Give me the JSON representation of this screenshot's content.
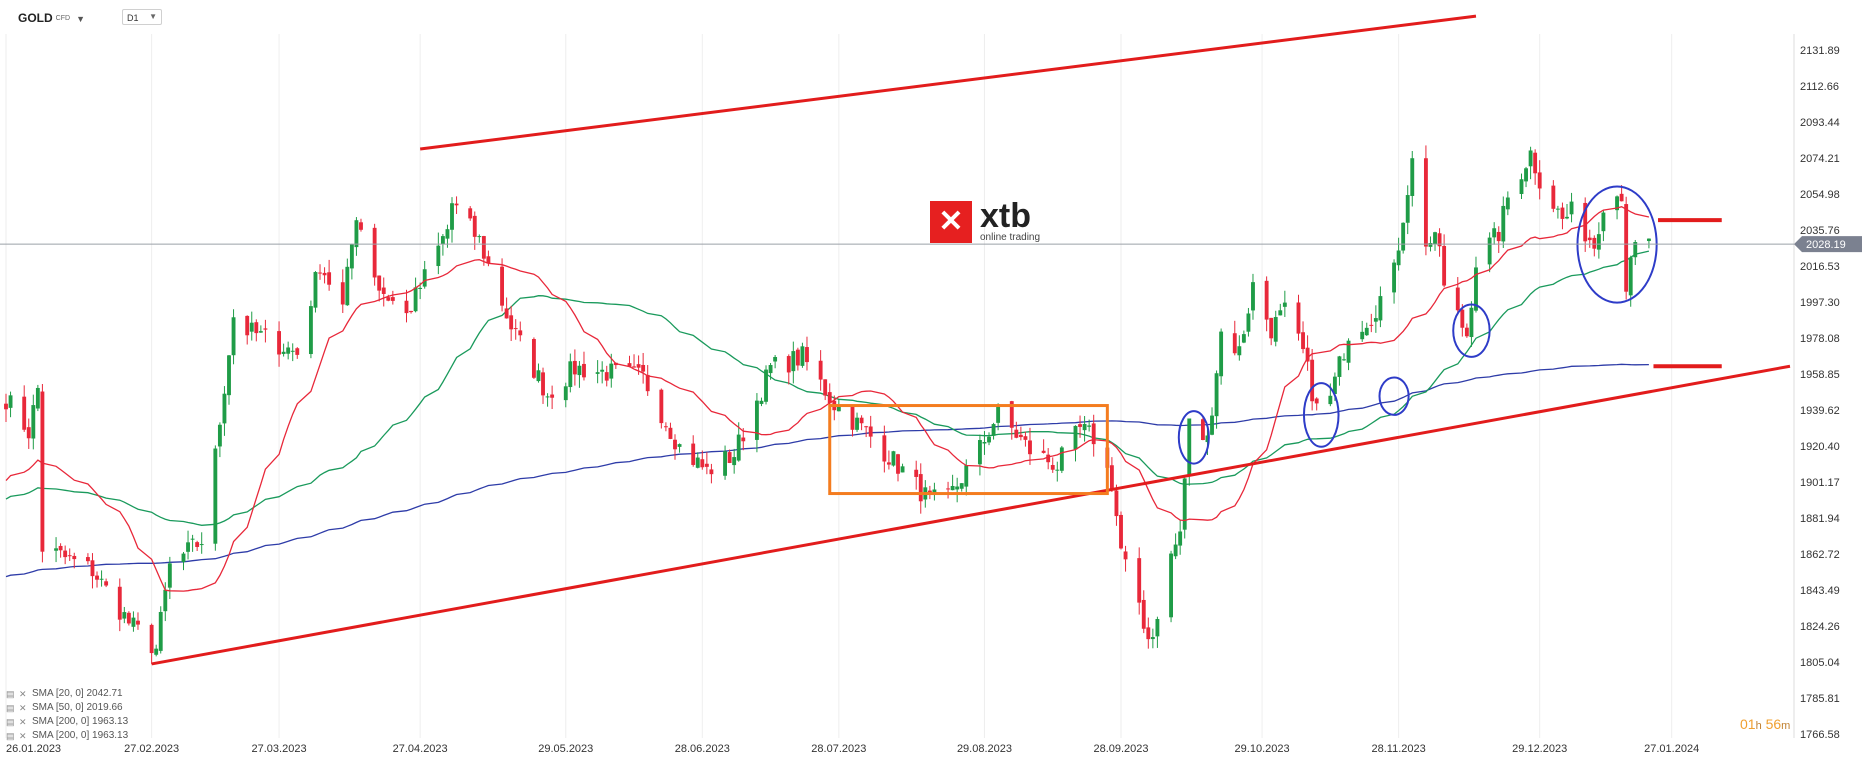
{
  "toolbar": {
    "symbol": "GOLD",
    "symbol_type": "CFD",
    "timeframe": "D1"
  },
  "logo": {
    "name": "xtb",
    "tagline": "online trading"
  },
  "timer": {
    "hours": "01",
    "h_unit": "h",
    "minutes": "56",
    "m_unit": "m"
  },
  "indicators": [
    {
      "label": "SMA [20, 0] 2042.71"
    },
    {
      "label": "SMA [50, 0] 2019.66"
    },
    {
      "label": "SMA [200, 0] 1963.13"
    },
    {
      "label": "SMA [200, 0] 1963.13"
    }
  ],
  "colors": {
    "bull": "#1f9c47",
    "bear": "#e8283a",
    "sma20": "#e8283a",
    "sma50": "#1a9a5c",
    "sma200": "#2e3ca8",
    "trendline": "#e21c1c",
    "range_box": "#f47c1f",
    "circle": "#2e3cc8",
    "price_tag": "#7b8190"
  },
  "chart_data": {
    "type": "candlestick",
    "symbol": "GOLD",
    "timeframe": "D1",
    "current_price": 2028.19,
    "y_ticks": [
      "2131.89",
      "2112.66",
      "2093.44",
      "2074.21",
      "2054.98",
      "2035.76",
      "2016.53",
      "1997.30",
      "1978.08",
      "1958.85",
      "1939.62",
      "1920.40",
      "1901.17",
      "1881.94",
      "1862.72",
      "1843.49",
      "1824.26",
      "1805.04",
      "1785.81",
      "1766.58"
    ],
    "x_ticks": [
      "26.01.2023",
      "27.02.2023",
      "27.03.2023",
      "27.04.2023",
      "29.05.2023",
      "28.06.2023",
      "28.07.2023",
      "29.08.2023",
      "28.09.2023",
      "29.10.2023",
      "28.11.2023",
      "29.12.2023",
      "27.01.2024"
    ],
    "x_range": [
      "2023-01-26",
      "2024-02-22"
    ],
    "ylim": [
      1766.58,
      2150.0
    ],
    "key_closes": [
      [
        "2023-01-26",
        1946
      ],
      [
        "2023-01-31",
        1928
      ],
      [
        "2023-02-02",
        1951
      ],
      [
        "2023-02-03",
        1866
      ],
      [
        "2023-02-14",
        1854
      ],
      [
        "2023-02-22",
        1826
      ],
      [
        "2023-02-28",
        1812
      ],
      [
        "2023-03-03",
        1856
      ],
      [
        "2023-03-10",
        1870
      ],
      [
        "2023-03-13",
        1915
      ],
      [
        "2023-03-17",
        1990
      ],
      [
        "2023-03-20",
        1982
      ],
      [
        "2023-03-24",
        1978
      ],
      [
        "2023-03-31",
        1970
      ],
      [
        "2023-04-05",
        2018
      ],
      [
        "2023-04-10",
        1994
      ],
      [
        "2023-04-13",
        2045
      ],
      [
        "2023-04-18",
        2005
      ],
      [
        "2023-04-24",
        1990
      ],
      [
        "2023-05-03",
        2036
      ],
      [
        "2023-05-04",
        2050
      ],
      [
        "2023-05-10",
        2030
      ],
      [
        "2023-05-17",
        1984
      ],
      [
        "2023-05-25",
        1948
      ],
      [
        "2023-05-31",
        1962
      ],
      [
        "2023-06-06",
        1960
      ],
      [
        "2023-06-15",
        1957
      ],
      [
        "2023-06-23",
        1920
      ],
      [
        "2023-06-29",
        1907
      ],
      [
        "2023-07-05",
        1916
      ],
      [
        "2023-07-13",
        1962
      ],
      [
        "2023-07-20",
        1968
      ],
      [
        "2023-07-27",
        1943
      ],
      [
        "2023-08-03",
        1928
      ],
      [
        "2023-08-10",
        1910
      ],
      [
        "2023-08-17",
        1891
      ],
      [
        "2023-08-21",
        1892
      ],
      [
        "2023-08-28",
        1919
      ],
      [
        "2023-09-01",
        1938
      ],
      [
        "2023-09-08",
        1918
      ],
      [
        "2023-09-14",
        1910
      ],
      [
        "2023-09-19",
        1929
      ],
      [
        "2023-09-22",
        1925
      ],
      [
        "2023-09-26",
        1901
      ],
      [
        "2023-09-28",
        1865
      ],
      [
        "2023-10-03",
        1823
      ],
      [
        "2023-10-05",
        1819
      ],
      [
        "2023-10-06",
        1832
      ],
      [
        "2023-10-09",
        1861
      ],
      [
        "2023-10-11",
        1874
      ],
      [
        "2023-10-13",
        1932
      ],
      [
        "2023-10-17",
        1923
      ],
      [
        "2023-10-20",
        1981
      ],
      [
        "2023-10-24",
        1971
      ],
      [
        "2023-10-27",
        2006
      ],
      [
        "2023-10-31",
        1983
      ],
      [
        "2023-11-03",
        1992
      ],
      [
        "2023-11-07",
        1970
      ],
      [
        "2023-11-10",
        1940
      ],
      [
        "2023-11-13",
        1946
      ],
      [
        "2023-11-17",
        1981
      ],
      [
        "2023-11-22",
        1990
      ],
      [
        "2023-11-27",
        2013
      ],
      [
        "2023-11-29",
        2044
      ],
      [
        "2023-12-01",
        2072
      ],
      [
        "2023-12-04",
        2030
      ],
      [
        "2023-12-07",
        2028
      ],
      [
        "2023-12-08",
        2004
      ],
      [
        "2023-12-13",
        1980
      ],
      [
        "2023-12-15",
        2019
      ],
      [
        "2023-12-20",
        2034
      ],
      [
        "2023-12-22",
        2053
      ],
      [
        "2023-12-27",
        2077
      ],
      [
        "2023-12-29",
        2063
      ],
      [
        "2024-01-03",
        2041
      ],
      [
        "2024-01-05",
        2045
      ],
      [
        "2024-01-10",
        2028
      ],
      [
        "2024-01-12",
        2051
      ],
      [
        "2024-01-16",
        2056
      ],
      [
        "2024-01-17",
        2006
      ],
      [
        "2024-01-19",
        2026
      ],
      [
        "2024-01-22",
        2028
      ]
    ],
    "indicators": [
      {
        "name": "SMA [20, 0]",
        "value": 2042.71
      },
      {
        "name": "SMA [50, 0]",
        "value": 2019.66
      },
      {
        "name": "SMA [200, 0]",
        "value": 1963.13
      }
    ],
    "annotations": {
      "trendline_upper": [
        [
          "2023-04-27",
          2079
        ],
        [
          "2023-12-15",
          2150
        ]
      ],
      "trendline_lower": [
        [
          "2023-02-27",
          1804
        ],
        [
          "2024-02-22",
          1963
        ]
      ],
      "level_lines": [
        {
          "price": 2041,
          "from": "2024-01-24",
          "to": "2024-02-07"
        },
        {
          "price": 1963,
          "from": "2024-01-23",
          "to": "2024-02-07"
        }
      ],
      "range_box": {
        "from": "2023-07-26",
        "to": "2023-09-25",
        "low": 1895,
        "high": 1942
      },
      "circles": [
        {
          "date": "2023-10-14",
          "price": 1925,
          "rx_days": 3.3,
          "ry_price": 14
        },
        {
          "date": "2023-11-11",
          "price": 1937,
          "rx_days": 3.8,
          "ry_price": 17
        },
        {
          "date": "2023-11-27",
          "price": 1947,
          "rx_days": 3.2,
          "ry_price": 10
        },
        {
          "date": "2023-12-14",
          "price": 1982,
          "rx_days": 4.0,
          "ry_price": 14
        },
        {
          "date": "2024-01-15",
          "price": 2028,
          "rx_days": 8.7,
          "ry_price": 31
        }
      ]
    }
  }
}
